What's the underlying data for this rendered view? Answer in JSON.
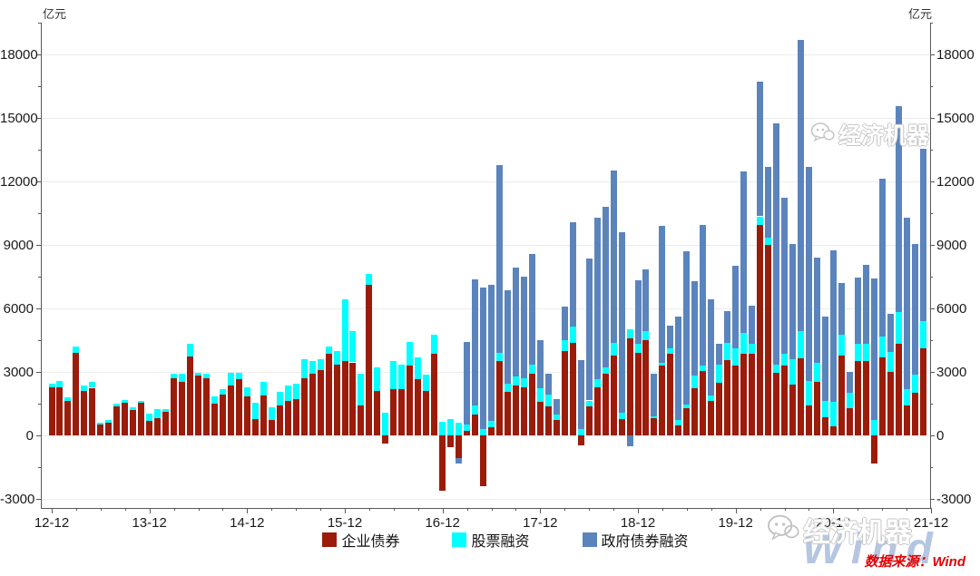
{
  "units": {
    "left": "亿元",
    "right": "亿元"
  },
  "source_note": "数据来源：Wind",
  "watermark": {
    "brand": "经济机器",
    "wind": "Wind"
  },
  "colors": {
    "corporate_bond": "#9b1c09",
    "stock": "#00ffff",
    "government_bond": "#5b84bd",
    "grid": "#ececec",
    "axis": "#595959",
    "source_red": "#e60000"
  },
  "chart_data": {
    "type": "bar",
    "subtype": "stacked-monthly",
    "unit": "亿元",
    "x_start": "2012-12",
    "x_end": "2021-11",
    "x_freq": "monthly",
    "x_tick_labels": [
      "12-12",
      "13-12",
      "14-12",
      "15-12",
      "16-12",
      "17-12",
      "18-12",
      "19-12",
      "20-12",
      "21-12"
    ],
    "y_axis": {
      "min": -3000,
      "max": 18000,
      "step": 3000,
      "minor_step": 1500,
      "dual_axis": true
    },
    "legend_position": "bottom-center",
    "grid": "horizontal-light",
    "series": [
      {
        "name": "企业债券",
        "color": "#9b1c09",
        "values": [
          2270,
          2280,
          1640,
          3890,
          2090,
          2250,
          500,
          620,
          1390,
          1560,
          1200,
          1560,
          690,
          800,
          1120,
          2720,
          2520,
          3710,
          2830,
          2710,
          1500,
          1930,
          2360,
          2640,
          1860,
          790,
          1900,
          740,
          1400,
          1640,
          1710,
          2700,
          2900,
          3100,
          3860,
          3360,
          3520,
          3450,
          1430,
          7100,
          2100,
          -400,
          2180,
          2190,
          3310,
          2640,
          2080,
          3840,
          -2630,
          -540,
          -1070,
          210,
          1000,
          -2400,
          400,
          3530,
          2070,
          2360,
          2290,
          2930,
          1570,
          1360,
          710,
          4000,
          4360,
          -450,
          1360,
          2290,
          2930,
          3790,
          790,
          4600,
          3900,
          4500,
          800,
          3300,
          3870,
          470,
          1290,
          2240,
          3040,
          1610,
          2500,
          3570,
          3300,
          3865,
          3860,
          9953,
          9015,
          2971,
          3311,
          2383,
          3633,
          1422,
          2522,
          862,
          441,
          3751,
          1306,
          3535,
          3509,
          -1336,
          3702,
          2998,
          4341,
          1400,
          2030,
          4104
        ]
      },
      {
        "name": "股票融资",
        "color": "#00ffff",
        "values": [
          180,
          310,
          160,
          290,
          250,
          290,
          120,
          110,
          130,
          130,
          130,
          90,
          340,
          450,
          120,
          180,
          390,
          600,
          140,
          220,
          360,
          240,
          600,
          330,
          400,
          750,
          630,
          570,
          670,
          720,
          750,
          900,
          600,
          500,
          350,
          640,
          2890,
          1470,
          1480,
          550,
          1120,
          1070,
          1350,
          1140,
          1090,
          1060,
          790,
          930,
          630,
          790,
          600,
          290,
          430,
          300,
          300,
          360,
          360,
          430,
          430,
          430,
          640,
          570,
          290,
          500,
          790,
          290,
          290,
          360,
          290,
          570,
          290,
          400,
          430,
          430,
          120,
          120,
          260,
          260,
          150,
          590,
          260,
          290,
          850,
          790,
          800,
          977,
          449,
          397,
          315,
          353,
          526,
          1215,
          1282,
          1140,
          927,
          771,
          1125,
          991,
          693,
          783,
          814,
          717,
          957,
          938,
          1478,
          772,
          846,
          1294
        ]
      },
      {
        "name": "政府债券融资",
        "color": "#5b84bd",
        "values": [
          0,
          0,
          0,
          0,
          0,
          0,
          0,
          0,
          0,
          0,
          0,
          0,
          0,
          0,
          0,
          0,
          0,
          0,
          0,
          0,
          0,
          0,
          0,
          0,
          0,
          0,
          0,
          0,
          0,
          0,
          0,
          0,
          0,
          0,
          0,
          0,
          0,
          0,
          0,
          0,
          0,
          0,
          0,
          0,
          0,
          0,
          0,
          0,
          0,
          0,
          -240,
          3930,
          5930,
          6700,
          6400,
          8900,
          4430,
          5140,
          4790,
          5210,
          2290,
          1000,
          710,
          1570,
          4930,
          3280,
          6710,
          7650,
          7580,
          8140,
          8530,
          -500,
          3000,
          2900,
          2000,
          6500,
          1070,
          4890,
          7260,
          4470,
          6650,
          4550,
          1000,
          1500,
          3900,
          7613,
          1824,
          6363,
          3357,
          11413,
          7376,
          5459,
          13788,
          10104,
          4931,
          4000,
          7156,
          2437,
          1017,
          3130,
          3739,
          6701,
          7475,
          1820,
          9738,
          8109,
          6167,
          8158
        ]
      }
    ]
  }
}
